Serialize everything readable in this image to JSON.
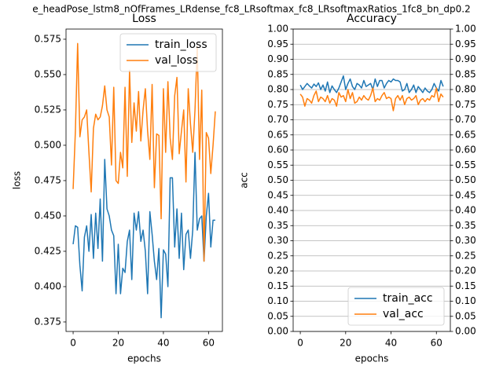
{
  "title": "e_headPose_lstm8_nOfFrames_LRdense_fc8_LRsoftmax_fc8_LRsoftmaxRatios_1fc8_bn_dp0.2",
  "chart_data": [
    {
      "type": "line",
      "title": "Loss",
      "x_label": "epochs",
      "y_label": "loss",
      "legend": "upper right",
      "grid": false,
      "x": [
        0,
        1,
        2,
        3,
        4,
        5,
        6,
        7,
        8,
        9,
        10,
        11,
        12,
        13,
        14,
        15,
        16,
        17,
        18,
        19,
        20,
        21,
        22,
        23,
        24,
        25,
        26,
        27,
        28,
        29,
        30,
        31,
        32,
        33,
        34,
        35,
        36,
        37,
        38,
        39,
        40,
        41,
        42,
        43,
        44,
        45,
        46,
        47,
        48,
        49,
        50,
        51,
        52,
        53,
        54,
        55,
        56,
        57,
        58,
        59,
        60,
        61,
        62,
        63
      ],
      "xlim": [
        -3.15,
        66.15
      ],
      "xticks": [
        0,
        20,
        40,
        60
      ],
      "ylim": [
        0.3683,
        0.5822
      ],
      "yticks": [
        0.375,
        {
          "value": 0.4,
          "label": "0.400"
        },
        0.425,
        {
          "value": 0.45,
          "label": "0.450"
        },
        0.475,
        {
          "value": 0.5,
          "label": "0.500"
        },
        0.525,
        {
          "value": 0.55,
          "label": "0.550"
        },
        0.575
      ],
      "series": [
        {
          "name": "train_loss",
          "color": "#1f77b4",
          "values": [
            0.43,
            0.443,
            0.442,
            0.415,
            0.397,
            0.435,
            0.443,
            0.425,
            0.451,
            0.42,
            0.452,
            0.427,
            0.462,
            0.418,
            0.49,
            0.455,
            0.45,
            0.44,
            0.436,
            0.395,
            0.43,
            0.395,
            0.413,
            0.41,
            0.432,
            0.44,
            0.405,
            0.452,
            0.44,
            0.453,
            0.432,
            0.44,
            0.425,
            0.395,
            0.453,
            0.437,
            0.418,
            0.405,
            0.427,
            0.378,
            0.426,
            0.423,
            0.4,
            0.477,
            0.477,
            0.428,
            0.455,
            0.42,
            0.452,
            0.412,
            0.437,
            0.44,
            0.42,
            0.44,
            0.495,
            0.44,
            0.448,
            0.45,
            0.418,
            0.45,
            0.466,
            0.428,
            0.447,
            0.447
          ]
        },
        {
          "name": "val_loss",
          "color": "#ff7f0e",
          "values": [
            0.469,
            0.51,
            0.572,
            0.506,
            0.518,
            0.52,
            0.525,
            0.495,
            0.467,
            0.512,
            0.522,
            0.518,
            0.52,
            0.528,
            0.542,
            0.525,
            0.52,
            0.486,
            0.541,
            0.475,
            0.473,
            0.495,
            0.484,
            0.541,
            0.478,
            0.553,
            0.502,
            0.53,
            0.51,
            0.538,
            0.503,
            0.525,
            0.54,
            0.51,
            0.49,
            0.543,
            0.47,
            0.508,
            0.507,
            0.448,
            0.54,
            0.495,
            0.545,
            0.505,
            0.49,
            0.535,
            0.548,
            0.494,
            0.51,
            0.525,
            0.474,
            0.54,
            0.515,
            0.495,
            0.525,
            0.57,
            0.49,
            0.539,
            0.418,
            0.509,
            0.505,
            0.48,
            0.5,
            0.524
          ]
        }
      ]
    },
    {
      "type": "line",
      "title": "Accuracy",
      "x_label": "epochs",
      "y_label": "acc",
      "legend": "lower right",
      "grid": true,
      "x": [
        0,
        1,
        2,
        3,
        4,
        5,
        6,
        7,
        8,
        9,
        10,
        11,
        12,
        13,
        14,
        15,
        16,
        17,
        18,
        19,
        20,
        21,
        22,
        23,
        24,
        25,
        26,
        27,
        28,
        29,
        30,
        31,
        32,
        33,
        34,
        35,
        36,
        37,
        38,
        39,
        40,
        41,
        42,
        43,
        44,
        45,
        46,
        47,
        48,
        49,
        50,
        51,
        52,
        53,
        54,
        55,
        56,
        57,
        58,
        59,
        60,
        61,
        62,
        63
      ],
      "xlim": [
        -3.15,
        66.15
      ],
      "xticks": [
        0,
        20,
        40,
        60
      ],
      "ylim": [
        0,
        1
      ],
      "yticks": [
        {
          "value": 0,
          "label": "0.00"
        },
        0.05,
        {
          "value": 0.1,
          "label": "0.10"
        },
        0.15,
        {
          "value": 0.2,
          "label": "0.20"
        },
        0.25,
        {
          "value": 0.3,
          "label": "0.30"
        },
        0.35,
        {
          "value": 0.4,
          "label": "0.40"
        },
        0.45,
        {
          "value": 0.5,
          "label": "0.50"
        },
        0.55,
        {
          "value": 0.6,
          "label": "0.60"
        },
        0.65,
        {
          "value": 0.7,
          "label": "0.70"
        },
        0.75,
        {
          "value": 0.8,
          "label": "0.80"
        },
        0.85,
        {
          "value": 0.9,
          "label": "0.90"
        },
        0.95,
        {
          "value": 1,
          "label": "1.00"
        }
      ],
      "y2lim": [
        0,
        1
      ],
      "y2ticks": [
        {
          "value": 0,
          "label": "0.00"
        },
        0.05,
        {
          "value": 0.1,
          "label": "0.10"
        },
        0.15,
        {
          "value": 0.2,
          "label": "0.20"
        },
        0.25,
        {
          "value": 0.3,
          "label": "0.30"
        },
        0.35,
        {
          "value": 0.4,
          "label": "0.40"
        },
        0.45,
        {
          "value": 0.5,
          "label": "0.50"
        },
        0.55,
        {
          "value": 0.6,
          "label": "0.60"
        },
        0.65,
        {
          "value": 0.7,
          "label": "0.70"
        },
        0.75,
        {
          "value": 0.8,
          "label": "0.80"
        },
        0.85,
        {
          "value": 0.9,
          "label": "0.90"
        },
        0.95,
        {
          "value": 1,
          "label": "1.00"
        }
      ],
      "series": [
        {
          "name": "train_acc",
          "color": "#1f77b4",
          "values": [
            0.815,
            0.8,
            0.81,
            0.82,
            0.812,
            0.805,
            0.818,
            0.81,
            0.822,
            0.8,
            0.815,
            0.795,
            0.825,
            0.79,
            0.812,
            0.8,
            0.79,
            0.805,
            0.825,
            0.845,
            0.8,
            0.82,
            0.835,
            0.81,
            0.8,
            0.82,
            0.815,
            0.805,
            0.83,
            0.81,
            0.815,
            0.82,
            0.8,
            0.835,
            0.81,
            0.83,
            0.83,
            0.805,
            0.82,
            0.83,
            0.825,
            0.835,
            0.83,
            0.83,
            0.825,
            0.795,
            0.8,
            0.82,
            0.79,
            0.8,
            0.815,
            0.79,
            0.81,
            0.8,
            0.79,
            0.805,
            0.795,
            0.79,
            0.8,
            0.82,
            0.805,
            0.795,
            0.83,
            0.81
          ]
        },
        {
          "name": "val_acc",
          "color": "#ff7f0e",
          "values": [
            0.785,
            0.775,
            0.745,
            0.77,
            0.765,
            0.755,
            0.78,
            0.795,
            0.76,
            0.775,
            0.77,
            0.76,
            0.78,
            0.755,
            0.77,
            0.765,
            0.745,
            0.79,
            0.775,
            0.78,
            0.76,
            0.8,
            0.77,
            0.79,
            0.755,
            0.76,
            0.775,
            0.765,
            0.78,
            0.77,
            0.765,
            0.78,
            0.805,
            0.76,
            0.77,
            0.765,
            0.78,
            0.79,
            0.77,
            0.775,
            0.77,
            0.73,
            0.77,
            0.78,
            0.765,
            0.78,
            0.75,
            0.77,
            0.775,
            0.765,
            0.77,
            0.78,
            0.75,
            0.765,
            0.77,
            0.76,
            0.77,
            0.765,
            0.78,
            0.775,
            0.805,
            0.76,
            0.785,
            0.775
          ]
        }
      ]
    }
  ]
}
